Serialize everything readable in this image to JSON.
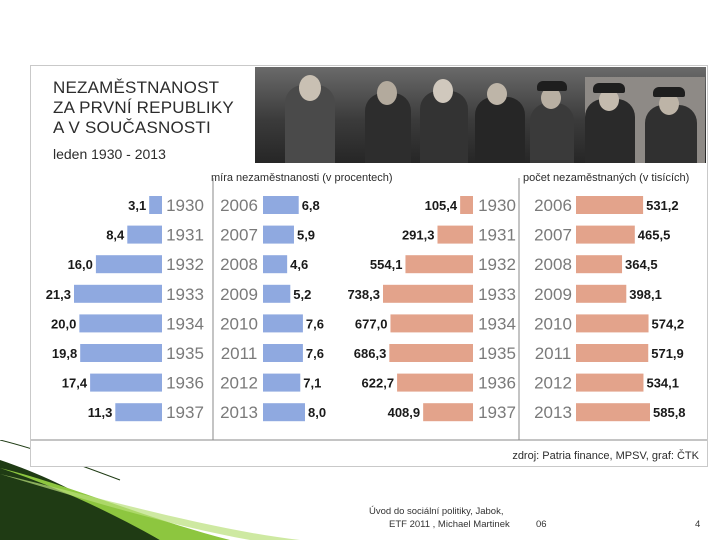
{
  "chart_data": {
    "type": "bar",
    "title": "NEZAMĚSTNANOST\nZA PRVNÍ REPUBLIKY\nA V SOUČASNOSTI",
    "title_lines": [
      "NEZAMĚSTNANOST",
      "ZA PRVNÍ REPUBLIKY",
      "A V SOUČASNOSTI"
    ],
    "subtitle": "leden 1930 - 2013",
    "source": "zdroj: Patria finance, MPSV, graf: ČTK",
    "panels": [
      {
        "name": "míra nezaměstnanosti (v procentech)",
        "color": "#8fa9e0",
        "periods": [
          {
            "categories": [
              "1930",
              "1931",
              "1932",
              "1933",
              "1934",
              "1935",
              "1936",
              "1937"
            ],
            "values": [
              3.1,
              8.4,
              16.0,
              21.3,
              20.0,
              19.8,
              17.4,
              11.3
            ],
            "labels": [
              "3,1",
              "8,4",
              "16,0",
              "21,3",
              "20,0",
              "19,8",
              "17,4",
              "11,3"
            ]
          },
          {
            "categories": [
              "2006",
              "2007",
              "2008",
              "2009",
              "2010",
              "2011",
              "2012",
              "2013"
            ],
            "values": [
              6.8,
              5.9,
              4.6,
              5.2,
              7.6,
              7.6,
              7.1,
              8.0
            ],
            "labels": [
              "6,8",
              "5,9",
              "4,6",
              "5,2",
              "7,6",
              "7,6",
              "7,1",
              "8,0"
            ]
          }
        ]
      },
      {
        "name": "počet nezaměstnaných (v tisících)",
        "color": "#e3a38b",
        "periods": [
          {
            "categories": [
              "1930",
              "1931",
              "1932",
              "1933",
              "1934",
              "1935",
              "1936",
              "1937"
            ],
            "values": [
              105.4,
              291.3,
              554.1,
              738.3,
              677.0,
              686.3,
              622.7,
              408.9
            ],
            "labels": [
              "105,4",
              "291,3",
              "554,1",
              "738,3",
              "677,0",
              "686,3",
              "622,7",
              "408,9"
            ]
          },
          {
            "categories": [
              "2006",
              "2007",
              "2008",
              "2009",
              "2010",
              "2011",
              "2012",
              "2013"
            ],
            "values": [
              531.2,
              465.5,
              364.5,
              398.1,
              574.2,
              571.9,
              534.1,
              585.8
            ],
            "labels": [
              "531,2",
              "465,5",
              "364,5",
              "398,1",
              "574,2",
              "571,9",
              "534,1",
              "585,8"
            ]
          }
        ]
      }
    ]
  },
  "footer": {
    "line1": "Úvod do sociální politiky, Jabok,",
    "line2": "ETF 2011 , Michael Martinek",
    "code": "06",
    "page": "4"
  },
  "colors": {
    "blue_bar": "#8fa9e0",
    "salmon_bar": "#e3a38b",
    "year_text": "#7a7a7a",
    "accent_green": "#8dc63f"
  }
}
